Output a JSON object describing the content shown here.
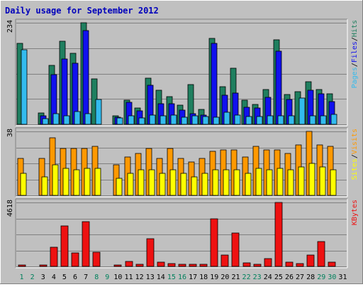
{
  "chart_data": {
    "type": "bar",
    "title": "Daily usage for September 2012",
    "categories": [
      "1",
      "2",
      "3",
      "4",
      "5",
      "6",
      "7",
      "8",
      "9",
      "10",
      "11",
      "12",
      "13",
      "14",
      "15",
      "16",
      "17",
      "18",
      "19",
      "20",
      "21",
      "22",
      "23",
      "24",
      "25",
      "26",
      "27",
      "28",
      "29",
      "30",
      "31"
    ],
    "weekend_days": [
      "1",
      "2",
      "8",
      "9",
      "15",
      "16",
      "22",
      "23",
      "29",
      "30"
    ],
    "panels": [
      {
        "id": "hits-files-pages",
        "ymax_label": "234",
        "ylim": [
          0,
          234
        ],
        "legend": [
          "Pages",
          "/",
          "Files",
          "/",
          "Hits"
        ],
        "series": [
          {
            "name": "Hits",
            "color": "#1f7f5f",
            "values": [
              186,
              0,
              26,
              136,
              192,
              164,
              234,
              105,
              0,
              19,
              56,
              38,
              106,
              78,
              63,
              44,
              92,
              34,
              198,
              87,
              129,
              55,
              46,
              80,
              194,
              68,
              76,
              98,
              80,
              71,
              0
            ]
          },
          {
            "name": "Files",
            "color": "#1111ee",
            "values": [
              0,
              0,
              20,
              114,
              150,
              140,
              216,
              0,
              0,
              17,
              50,
              31,
              90,
              47,
              48,
              32,
              24,
              21,
              187,
              67,
              72,
              40,
              37,
              62,
              169,
              57,
              0,
              79,
              71,
              53,
              0
            ]
          },
          {
            "name": "Pages",
            "color": "#33bbee",
            "values": [
              172,
              0,
              13,
              25,
              20,
              30,
              25,
              58,
              0,
              14,
              20,
              14,
              22,
              20,
              21,
              17,
              20,
              18,
              17,
              28,
              21,
              18,
              18,
              20,
              20,
              20,
              60,
              20,
              20,
              23,
              0
            ]
          }
        ]
      },
      {
        "id": "visits-sites",
        "ymax_label": "38",
        "ylim": [
          0,
          38
        ],
        "legend": [
          "Sites",
          "/",
          "Visits"
        ],
        "series": [
          {
            "name": "Visits",
            "color": "#ff9900",
            "values": [
              22,
              0,
              22,
              34,
              28,
              28,
              28,
              29,
              0,
              18,
              23,
              25,
              28,
              22,
              28,
              22,
              20,
              22,
              26,
              27,
              27,
              23,
              29,
              27,
              27,
              25,
              30,
              38,
              30,
              29,
              0
            ]
          },
          {
            "name": "Sites",
            "color": "#ffff00",
            "values": [
              13,
              0,
              11,
              18,
              16,
              15,
              16,
              16,
              0,
              10,
              13,
              15,
              15,
              13,
              15,
              13,
              11,
              13,
              15,
              15,
              15,
              13,
              16,
              15,
              16,
              15,
              17,
              19,
              17,
              15,
              0
            ]
          }
        ]
      },
      {
        "id": "kbytes",
        "ymax_label": "4618",
        "ylim": [
          0,
          4618
        ],
        "legend": [
          "KBytes"
        ],
        "series": [
          {
            "name": "KBytes",
            "color": "#ee1111",
            "values": [
              120,
              0,
              120,
              1390,
              2900,
              950,
              3220,
              1050,
              0,
              90,
              370,
              150,
              1990,
              290,
              230,
              170,
              170,
              150,
              3430,
              820,
              2410,
              270,
              160,
              590,
              4618,
              330,
              230,
              800,
              1790,
              330,
              0
            ]
          }
        ]
      }
    ]
  }
}
